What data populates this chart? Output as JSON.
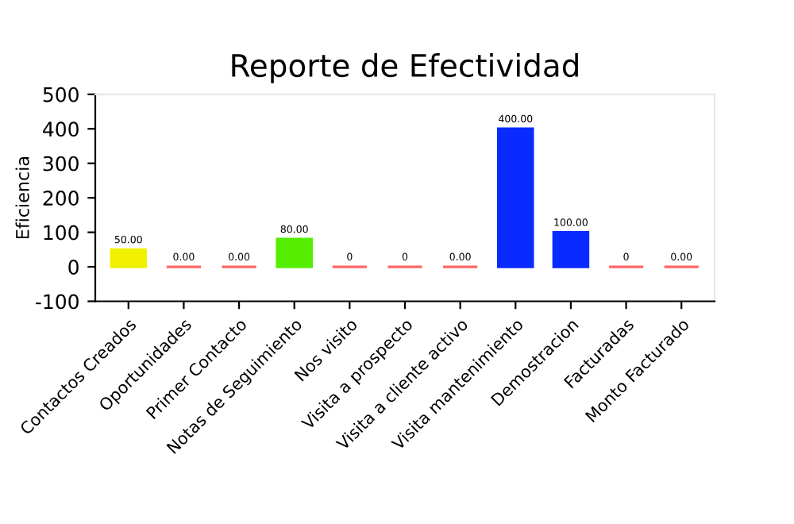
{
  "chart_data": {
    "type": "bar",
    "title": "Reporte de Efectividad",
    "ylabel": "Eficiencia",
    "categories": [
      "Contactos Creados",
      "Oportunidades",
      "Primer Contacto",
      "Notas de Seguimiento",
      "Nos visito",
      "Visita a prospecto",
      "Visita a cliente activo",
      "Visita mantenimiento",
      "Demostracion",
      "Facturadas",
      "Monto Facturado"
    ],
    "values": [
      50,
      0,
      0,
      80,
      0,
      0,
      0,
      400,
      100,
      0,
      0
    ],
    "colors": [
      "#f0f000",
      "#ff6666",
      "#ff6666",
      "#55ee00",
      "#ff6666",
      "#ff6666",
      "#ff6666",
      "#0a2bff",
      "#0a2bff",
      "#ff6666",
      "#ff6666"
    ],
    "value_labels": [
      "50.00",
      "0.00",
      "0.00",
      "80.00",
      "0",
      "0",
      "0.00",
      "400.00",
      "100.00",
      "0",
      "0.00"
    ],
    "ylim": [
      -100,
      500
    ],
    "yticks": [
      -100,
      0,
      100,
      200,
      300,
      400,
      500
    ],
    "grid": false,
    "legend": false
  }
}
